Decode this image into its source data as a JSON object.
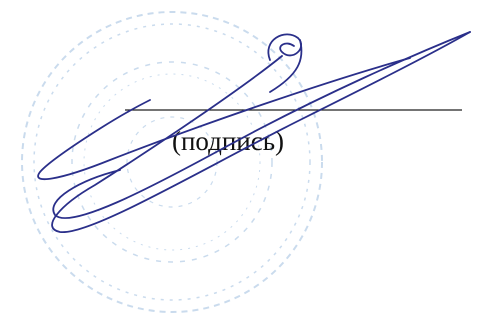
{
  "document": {
    "caption": "(подпись)"
  }
}
